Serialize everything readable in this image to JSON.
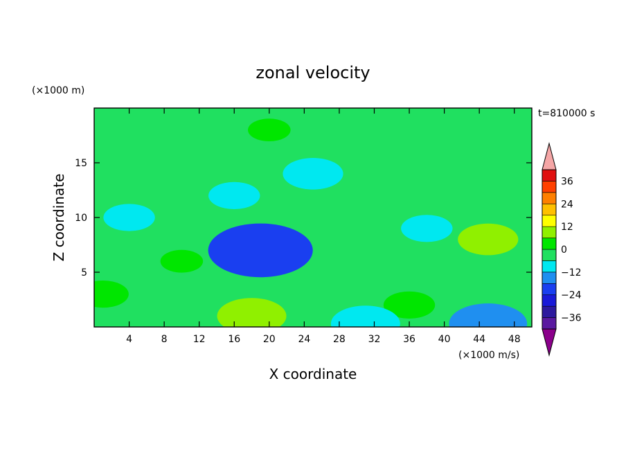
{
  "chart_data": {
    "type": "heatmap",
    "title": "zonal velocity",
    "xlabel": "X coordinate",
    "ylabel": "Z coordinate",
    "x_unit": "(×1000 m/s)",
    "y_unit": "(×1000 m)",
    "time_label": "t=810000 s",
    "xlim": [
      0,
      50
    ],
    "ylim": [
      0,
      20
    ],
    "x_ticks": [
      4,
      8,
      12,
      16,
      20,
      24,
      28,
      32,
      36,
      40,
      44,
      48
    ],
    "y_ticks": [
      5,
      10,
      15
    ],
    "colorbar": {
      "levels": [
        -42,
        -36,
        -30,
        -24,
        -18,
        -12,
        -6,
        0,
        6,
        12,
        18,
        24,
        30,
        36,
        42
      ],
      "tick_labels": [
        "36",
        "24",
        "12",
        "0",
        "−12",
        "−24",
        "−36"
      ],
      "tick_values": [
        36,
        24,
        12,
        0,
        -12,
        -24,
        -36
      ],
      "colors": [
        "#8b008b",
        "#5a1aa0",
        "#2d1a9e",
        "#1a1ad8",
        "#1a3ff0",
        "#1f8ff0",
        "#00e8f0",
        "#20e060",
        "#00e600",
        "#90f000",
        "#ffff00",
        "#ffc000",
        "#ff8000",
        "#ff4000",
        "#e01010",
        "#f5a6a6"
      ]
    },
    "field_features": [
      {
        "x": 19,
        "z": 7,
        "value": -18
      },
      {
        "x": 16,
        "z": 12,
        "value": -6
      },
      {
        "x": 4,
        "z": 10,
        "value": -6
      },
      {
        "x": 38,
        "z": 9,
        "value": -6
      },
      {
        "x": 25,
        "z": 14,
        "value": -8
      },
      {
        "x": 20,
        "z": 18,
        "value": 4
      },
      {
        "x": 18,
        "z": 1,
        "value": 10
      },
      {
        "x": 45,
        "z": 8,
        "value": 8
      },
      {
        "x": 10,
        "z": 6,
        "value": 4
      },
      {
        "x": 36,
        "z": 2,
        "value": 6
      },
      {
        "x": 31,
        "z": 0.3,
        "value": -10
      },
      {
        "x": 45,
        "z": 0.3,
        "value": -12
      },
      {
        "x": 1,
        "z": 3,
        "value": 6
      }
    ]
  }
}
